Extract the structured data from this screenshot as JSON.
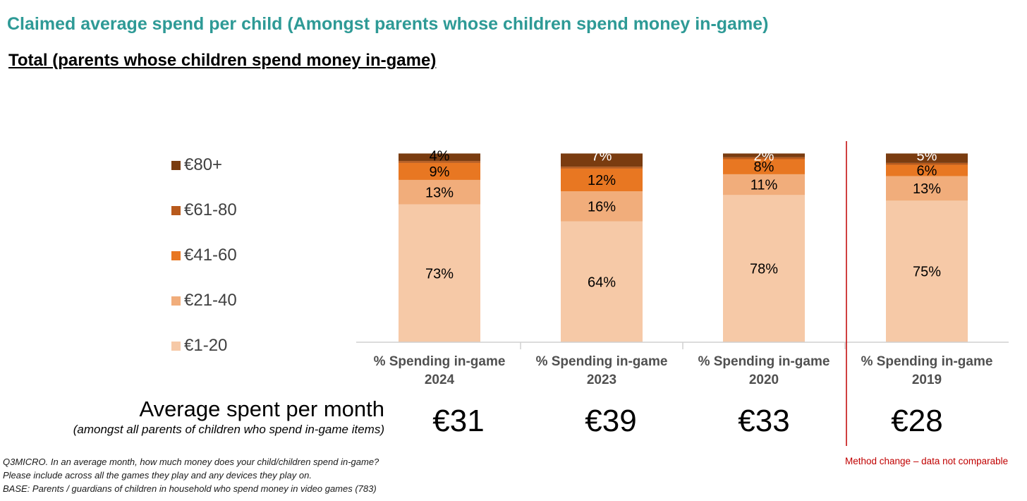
{
  "header": {
    "title": "Claimed average spend per child (Amongst parents whose children spend money in-game)",
    "subtitle": "Total (parents whose children spend money in-game)"
  },
  "chart_data": {
    "type": "bar",
    "stacked": true,
    "percent_stacked": true,
    "categories": [
      "% Spending in-game 2024",
      "% Spending in-game 2023",
      "% Spending in-game 2020",
      "% Spending in-game 2019"
    ],
    "category_lines": [
      [
        "% Spending in-game",
        "2024"
      ],
      [
        "% Spending in-game",
        "2023"
      ],
      [
        "% Spending in-game",
        "2020"
      ],
      [
        "% Spending in-game",
        "2019"
      ]
    ],
    "series": [
      {
        "name": "€1-20",
        "color": "#f6c9a7",
        "values": [
          73,
          64,
          78,
          75
        ],
        "labels": [
          "73%",
          "64%",
          "78%",
          "75%"
        ],
        "label_color": "#000000"
      },
      {
        "name": "€21-40",
        "color": "#f1ad7b",
        "values": [
          13,
          16,
          11,
          13
        ],
        "labels": [
          "13%",
          "16%",
          "11%",
          "13%"
        ],
        "label_color": "#000000"
      },
      {
        "name": "€41-60",
        "color": "#e87722",
        "values": [
          9,
          12,
          8,
          6
        ],
        "labels": [
          "9%",
          "12%",
          "8%",
          "6%"
        ],
        "label_color": "#000000"
      },
      {
        "name": "€61-80",
        "color": "#b85a1c",
        "values": [
          1,
          1,
          1,
          1
        ],
        "labels": [
          "",
          "",
          "",
          ""
        ],
        "label_color": "#000000"
      },
      {
        "name": "€80+",
        "color": "#7a3c10",
        "values": [
          4,
          7,
          2,
          5
        ],
        "labels": [
          "4%",
          "7%",
          "2%",
          "5%"
        ],
        "label_colors": [
          "#000000",
          "#ffffff",
          "#ffffff",
          "#ffffff"
        ]
      }
    ],
    "legend_order": [
      "€80+",
      "€61-80",
      "€41-60",
      "€21-40",
      "€1-20"
    ],
    "legend_position": "left",
    "ylim": [
      0,
      100
    ],
    "grid": false,
    "divider": {
      "between": [
        "% Spending in-game 2020",
        "% Spending in-game 2019"
      ],
      "color": "#c00000"
    }
  },
  "legend": {
    "items": [
      {
        "label": "€80+",
        "color": "#7a3c10"
      },
      {
        "label": "€61-80",
        "color": "#b85a1c"
      },
      {
        "label": "€41-60",
        "color": "#e87722"
      },
      {
        "label": "€21-40",
        "color": "#f1ad7b"
      },
      {
        "label": "€1-20",
        "color": "#f6c9a7"
      }
    ]
  },
  "average": {
    "label": "Average spent per month",
    "sublabel": "(amongst all parents of children who spend in-game items)",
    "values": [
      "€31",
      "€39",
      "€33",
      "€28"
    ]
  },
  "footnote": {
    "lines": [
      "Q3MICRO. In an average month, how much money does your child/children spend in-game?",
      "Please include across all the games they play and any devices they play on.",
      "BASE: Parents / guardians of children in household who spend money in video games (783)"
    ]
  },
  "method_note": "Method change – data not comparable"
}
